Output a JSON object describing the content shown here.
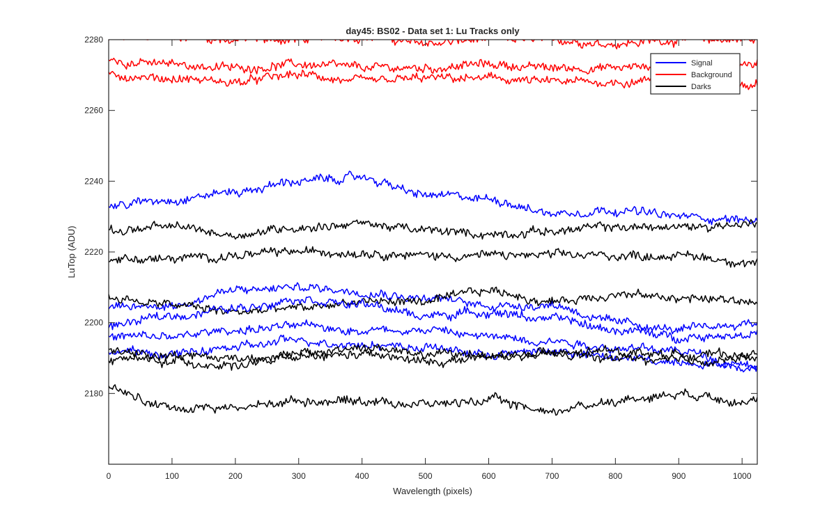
{
  "chart_data": {
    "type": "line",
    "title": "day45: BS02 - Data set 1: Lu Tracks only",
    "xlabel": "Wavelength (pixels)",
    "ylabel": "LuTop (ADU)",
    "xlim": [
      0,
      1024
    ],
    "ylim": [
      2160,
      2280
    ],
    "x_ticks": [
      0,
      100,
      200,
      300,
      400,
      500,
      600,
      700,
      800,
      900,
      1000
    ],
    "x_tick_labels": [
      "0",
      "100",
      "200",
      "300",
      "400",
      "500",
      "600",
      "700",
      "800",
      "900",
      "1000"
    ],
    "y_ticks": [
      2180,
      2200,
      2220,
      2240,
      2260,
      2280
    ],
    "y_tick_labels": [
      "2180",
      "2200",
      "2220",
      "2240",
      "2260",
      "2280"
    ],
    "grid": false,
    "legend": {
      "position": "top-right",
      "entries": [
        {
          "label": "Signal",
          "color": "#0000ff"
        },
        {
          "label": "Background",
          "color": "#ff0000"
        },
        {
          "label": "Darks",
          "color": "#000000"
        }
      ]
    },
    "colors": {
      "Signal": "#0000ff",
      "Background": "#ff0000",
      "Darks": "#000000"
    },
    "x_sample_points": [
      0,
      100,
      200,
      300,
      400,
      500,
      600,
      700,
      800,
      900,
      1024
    ],
    "series": [
      {
        "group": "Background",
        "color": "#ff0000",
        "values": [
          2280,
          2281,
          2280,
          2280,
          2281,
          2279,
          2280,
          2280,
          2279,
          2280,
          2280
        ]
      },
      {
        "group": "Background",
        "color": "#ff0000",
        "values": [
          2274,
          2273,
          2272,
          2273,
          2272,
          2272,
          2273,
          2272,
          2272,
          2273,
          2273
        ]
      },
      {
        "group": "Background",
        "color": "#ff0000",
        "values": [
          2270,
          2269,
          2268,
          2270,
          2268,
          2269,
          2269,
          2268,
          2268,
          2269,
          2268
        ]
      },
      {
        "group": "Signal",
        "color": "#0000ff",
        "values": [
          2233,
          2235,
          2237,
          2240,
          2241,
          2236,
          2235,
          2231,
          2232,
          2230,
          2229
        ]
      },
      {
        "group": "Darks",
        "color": "#000000",
        "values": [
          2226,
          2227,
          2225,
          2227,
          2228,
          2226,
          2225,
          2226,
          2227,
          2227,
          2228
        ]
      },
      {
        "group": "Darks",
        "color": "#000000",
        "values": [
          2218,
          2218,
          2219,
          2220,
          2220,
          2219,
          2219,
          2219,
          2219,
          2219,
          2217
        ]
      },
      {
        "group": "Signal",
        "color": "#0000ff",
        "values": [
          2204,
          2205,
          2209,
          2210,
          2209,
          2207,
          2205,
          2205,
          2200,
          2198,
          2200
        ]
      },
      {
        "group": "Darks",
        "color": "#000000",
        "values": [
          2207,
          2205,
          2203,
          2204,
          2206,
          2206,
          2209,
          2206,
          2208,
          2207,
          2206
        ]
      },
      {
        "group": "Signal",
        "color": "#0000ff",
        "values": [
          2199,
          2202,
          2204,
          2207,
          2205,
          2202,
          2203,
          2201,
          2198,
          2196,
          2197
        ]
      },
      {
        "group": "Signal",
        "color": "#0000ff",
        "values": [
          2196,
          2196,
          2198,
          2199,
          2198,
          2198,
          2196,
          2195,
          2193,
          2192,
          2187
        ]
      },
      {
        "group": "Signal",
        "color": "#0000ff",
        "values": [
          2192,
          2191,
          2193,
          2195,
          2194,
          2193,
          2191,
          2192,
          2190,
          2189,
          2188
        ]
      },
      {
        "group": "Darks",
        "color": "#000000",
        "values": [
          2192,
          2191,
          2190,
          2191,
          2193,
          2191,
          2191,
          2191,
          2192,
          2191,
          2191
        ]
      },
      {
        "group": "Darks",
        "color": "#000000",
        "values": [
          2190,
          2189,
          2188,
          2190,
          2191,
          2189,
          2190,
          2191,
          2190,
          2189,
          2190
        ]
      },
      {
        "group": "Darks",
        "color": "#000000",
        "values": [
          2181,
          2176,
          2176,
          2178,
          2178,
          2177,
          2178,
          2175,
          2178,
          2180,
          2178
        ]
      }
    ]
  }
}
